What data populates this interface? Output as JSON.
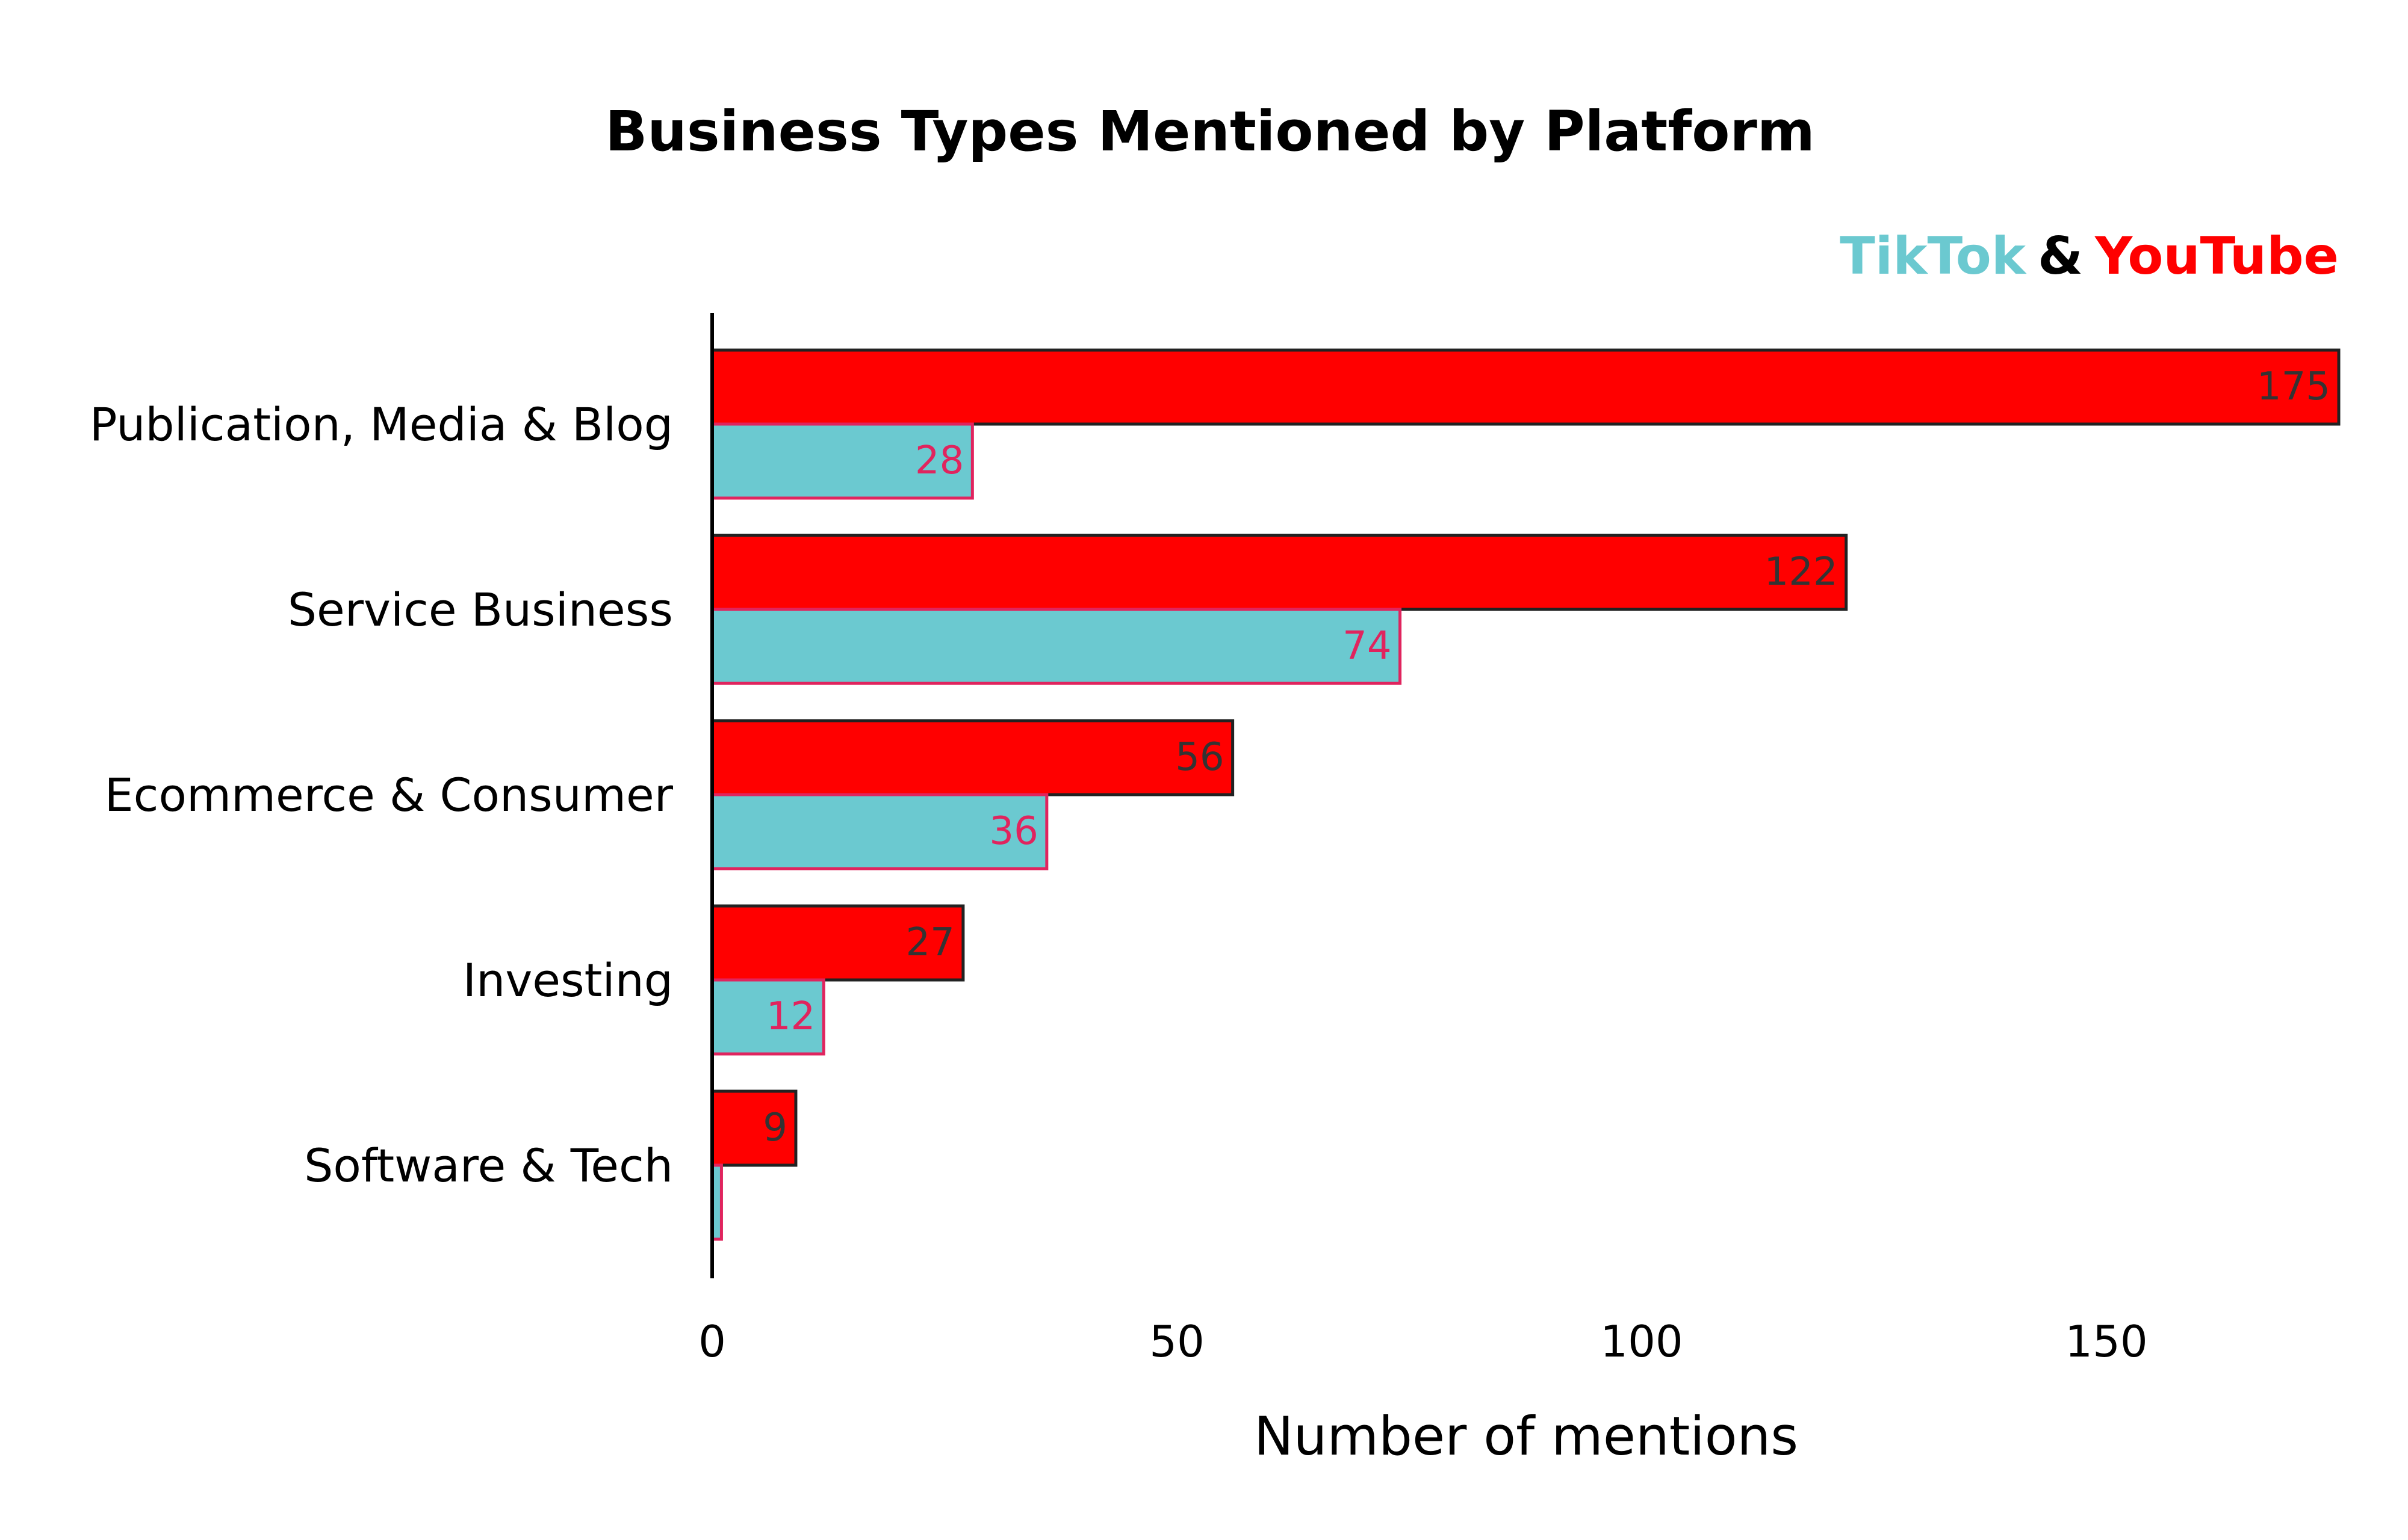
{
  "chart_data": {
    "type": "bar",
    "orientation": "horizontal",
    "title": "Business Types Mentioned by Platform",
    "legend": {
      "position": "top-right",
      "items": [
        {
          "label": "TikTok",
          "color": "#6BC9D0"
        },
        {
          "label": "&",
          "color": "#000000"
        },
        {
          "label": "YouTube",
          "color": "#FF0000"
        }
      ]
    },
    "categories": [
      "Publication, Media & Blog",
      "Service Business",
      "Ecommerce & Consumer",
      "Investing",
      "Software & Tech"
    ],
    "series": [
      {
        "name": "YouTube",
        "color": "#FF0000",
        "edge_color": "#222222",
        "label_color": "#333333",
        "values": [
          175,
          122,
          56,
          27,
          9
        ],
        "labels": [
          "175",
          "122",
          "56",
          "27",
          "9"
        ]
      },
      {
        "name": "TikTok",
        "color": "#6BC9D0",
        "edge_color": "#E0245E",
        "label_color": "#E0245E",
        "values": [
          28,
          74,
          36,
          12,
          1
        ],
        "labels": [
          "28",
          "74",
          "36",
          "12",
          ""
        ]
      }
    ],
    "xlabel": "Number of mentions",
    "ylabel": "",
    "xlim": [
      0,
      175
    ],
    "xticks": [
      0,
      50,
      100,
      150
    ],
    "grid": false
  }
}
